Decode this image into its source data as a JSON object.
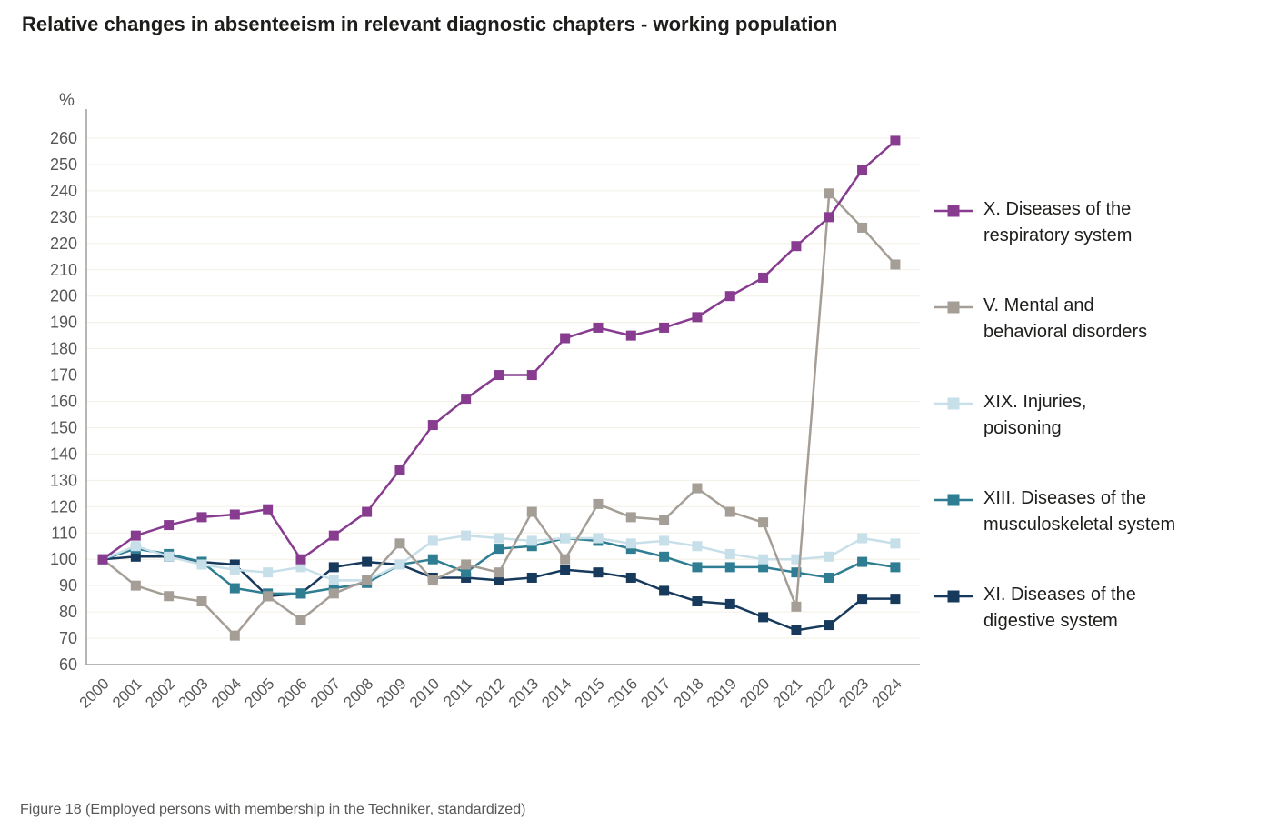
{
  "title": "Relative changes in absenteeism in relevant diagnostic chapters - working population",
  "caption": "Figure 18 (Employed persons with membership in the Techniker, standardized)",
  "colors": {
    "axis": "#9d9d9c",
    "grid": "#f3efe6",
    "tick_text": "#575756",
    "title_text": "#1d1d1b"
  },
  "chart_data": {
    "type": "line",
    "title": "Relative changes in absenteeism in relevant diagnostic chapters - working population",
    "xlabel": "",
    "ylabel": "%",
    "ylim": [
      60,
      260
    ],
    "ytick_step": 10,
    "grid": true,
    "legend_position": "right",
    "x": [
      2000,
      2001,
      2002,
      2003,
      2004,
      2005,
      2006,
      2007,
      2008,
      2009,
      2010,
      2011,
      2012,
      2013,
      2014,
      2015,
      2016,
      2017,
      2018,
      2019,
      2020,
      2021,
      2022,
      2023,
      2024
    ],
    "series": [
      {
        "name": "X. Diseases of the respiratory system",
        "label": "X. Diseases of the\nrespiratory system",
        "color": "#873c90",
        "values": [
          100,
          109,
          113,
          116,
          117,
          119,
          100,
          109,
          118,
          134,
          151,
          161,
          170,
          170,
          184,
          188,
          185,
          188,
          192,
          200,
          207,
          219,
          230,
          248,
          259
        ]
      },
      {
        "name": "V. Mental and behavioral disorders",
        "label": "V. Mental and\nbehavioral disorders",
        "color": "#a59e96",
        "values": [
          100,
          90,
          86,
          84,
          71,
          86,
          77,
          87,
          92,
          106,
          92,
          98,
          95,
          118,
          100,
          121,
          116,
          115,
          127,
          118,
          114,
          82,
          239,
          226,
          212
        ]
      },
      {
        "name": "XIX. Injuries, poisoning",
        "label": "XIX. Injuries,\npoisoning",
        "color": "#c6dfe9",
        "values": [
          100,
          105,
          101,
          98,
          96,
          95,
          97,
          92,
          92,
          98,
          107,
          109,
          108,
          107,
          108,
          108,
          106,
          107,
          105,
          102,
          100,
          100,
          101,
          108,
          106
        ]
      },
      {
        "name": "XIII. Diseases of the musculoskeletal system",
        "label": "XIII. Diseases of the\nmusculoskeletal system",
        "color": "#2f7d92",
        "values": [
          100,
          104,
          102,
          99,
          89,
          87,
          87,
          89,
          91,
          98,
          100,
          95,
          104,
          105,
          108,
          107,
          104,
          101,
          97,
          97,
          97,
          95,
          93,
          99,
          97
        ]
      },
      {
        "name": "XI. Diseases of the digestive system",
        "label": "XI. Diseases of the\ndigestive system",
        "color": "#16395c",
        "values": [
          100,
          101,
          101,
          99,
          98,
          86,
          87,
          97,
          99,
          98,
          93,
          93,
          92,
          93,
          96,
          95,
          93,
          88,
          84,
          83,
          78,
          73,
          75,
          85,
          85
        ]
      }
    ]
  }
}
